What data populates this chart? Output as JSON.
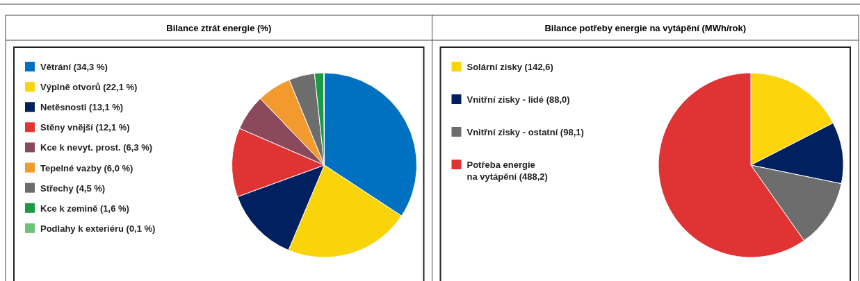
{
  "chart_data": [
    {
      "type": "pie",
      "title": "Bilance ztrát energie (%)",
      "legend": "left",
      "categories": [
        "Větrání (34,3 %)",
        "Výplně otvorů (22,1 %)",
        "Netěsnosti (13,1 %)",
        "Stěny vnější (12,1 %)",
        "Kce k nevyt. prost. (6,3 %)",
        "Tepelné vazby (6,0 %)",
        "Střechy (4,5 %)",
        "Kce k zemině (1,6 %)",
        "Podlahy k exteriéru (0,1 %)"
      ],
      "values": [
        34.3,
        22.1,
        13.1,
        12.1,
        6.3,
        6.0,
        4.5,
        1.6,
        0.1
      ],
      "colors": [
        "#0070c0",
        "#f9d40a",
        "#002060",
        "#e03434",
        "#8a4a5c",
        "#f39a2e",
        "#6d6d6d",
        "#1a9a44",
        "#6cc27a"
      ]
    },
    {
      "type": "pie",
      "title": "Bilance potřeby energie na vytápění (MWh/rok)",
      "legend": "left",
      "categories": [
        "Solární zisky (142,6)",
        "Vnitřní zisky - lidé (88,0)",
        "Vnitřní zisky - ostatní (98,1)",
        "Potřeba energie\nna vytápění (488,2)"
      ],
      "values": [
        142.6,
        88.0,
        98.1,
        488.2
      ],
      "colors": [
        "#fcd40a",
        "#002060",
        "#6d6d6d",
        "#e03434"
      ]
    }
  ]
}
